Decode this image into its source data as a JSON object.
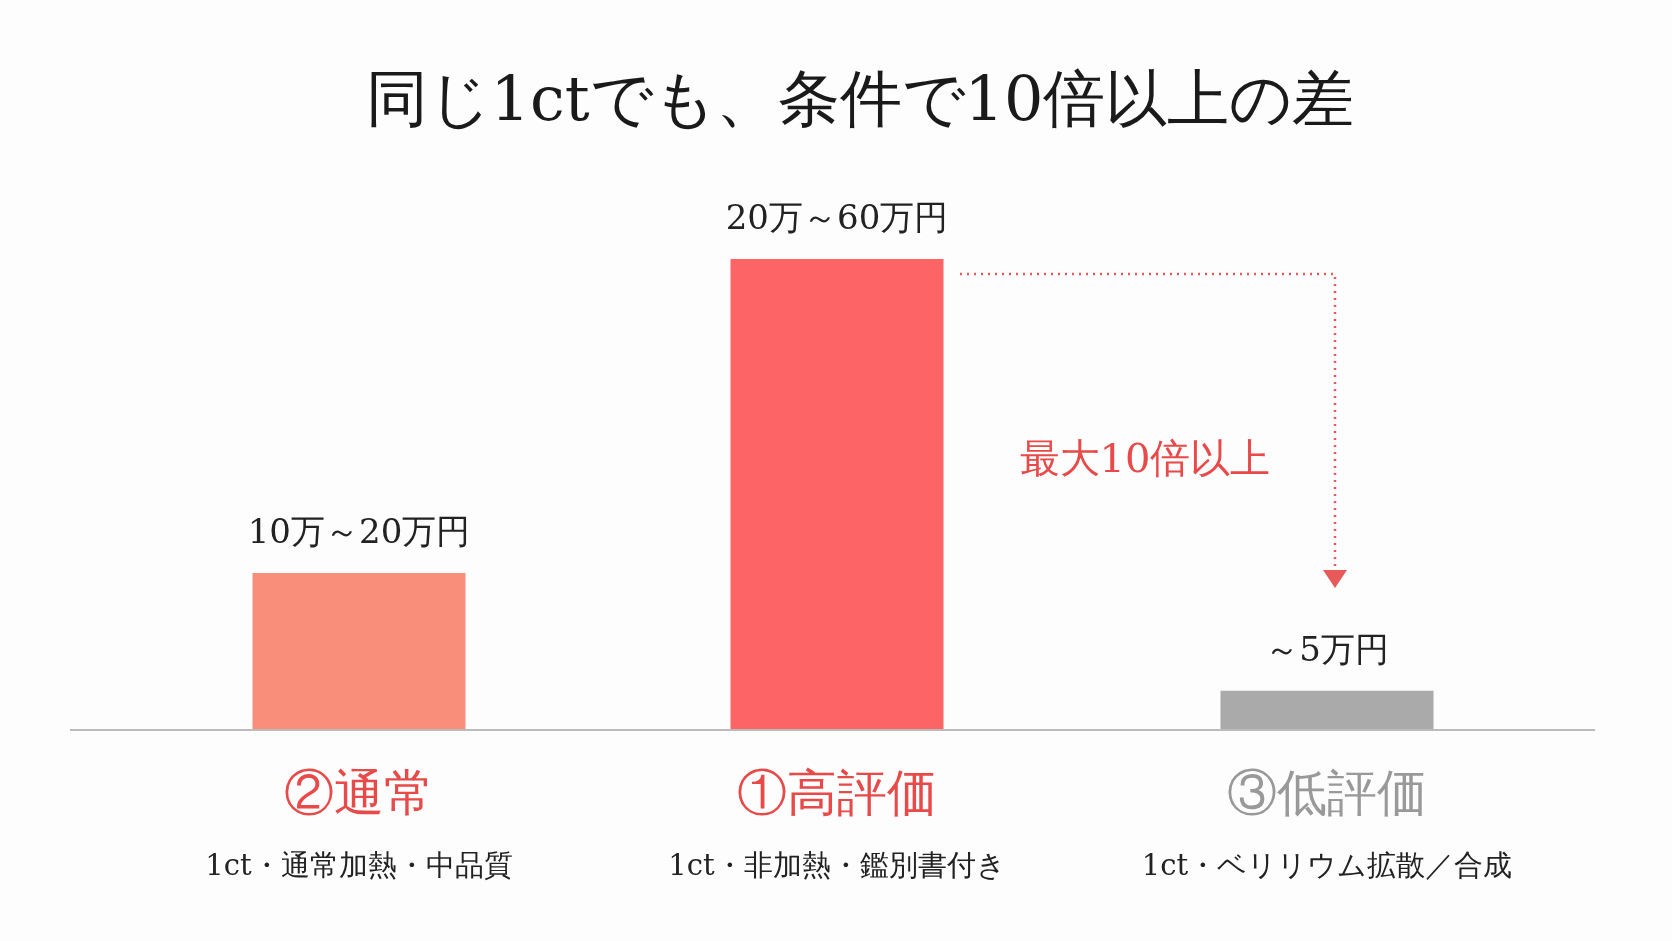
{
  "chart_data": {
    "type": "bar",
    "title": "同じ1ctでも、条件で10倍以上の差",
    "categories": [
      "②通常\n1ct・通常加熱・中品質",
      "①高評価\n1ct・非加熱・鑑別書付き",
      "③低評価\n1ct・ベリリウム拡散／合成"
    ],
    "values": [
      20,
      60,
      5
    ],
    "colors": [
      "#f98f7a",
      "#fd6466",
      "#aaaaaa"
    ],
    "value_labels": [
      "10万～20万円",
      "20万～60万円",
      "～5万円"
    ],
    "annotations": [
      "最大10倍以上"
    ]
  }
}
